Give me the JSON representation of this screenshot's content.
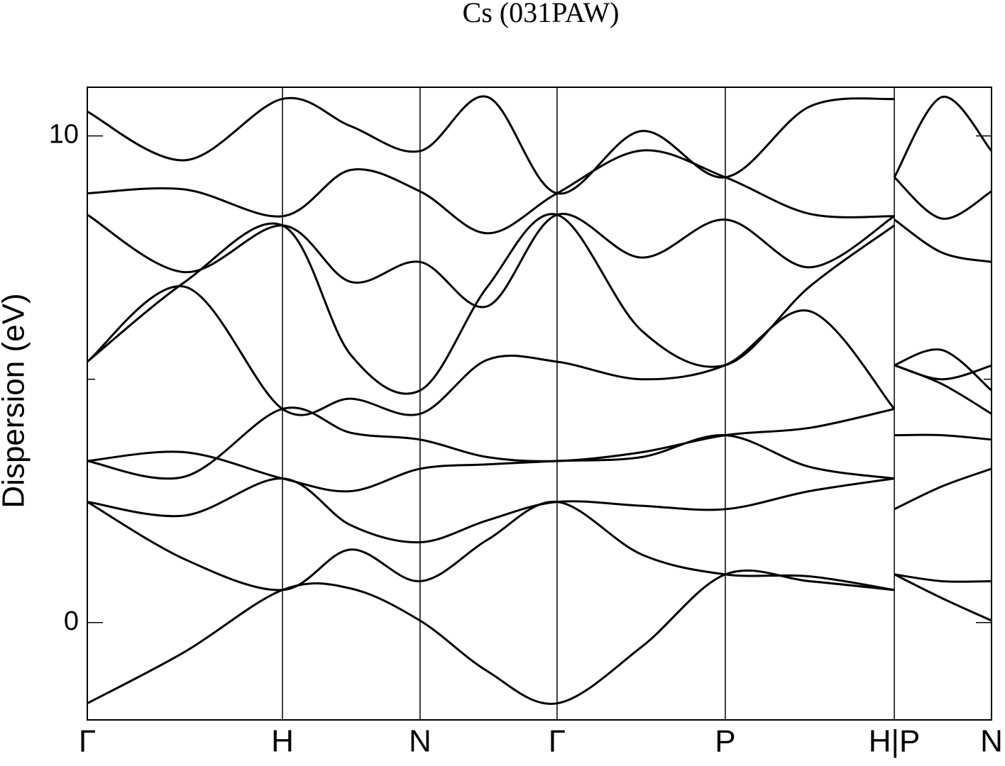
{
  "chart_data": {
    "type": "line",
    "title": "Cs (031PAW)",
    "y_label": "Dispersion (eV)",
    "color": "#000000",
    "xlim": [
      0,
      4.633
    ],
    "ylim": [
      -2,
      11
    ],
    "xticks": [
      {
        "value": 0,
        "label": "Γ"
      },
      {
        "value": 1,
        "label": "H"
      },
      {
        "value": 1.705,
        "label": "N"
      },
      {
        "value": 2.407,
        "label": "Γ"
      },
      {
        "value": 3.269,
        "label": "P"
      },
      {
        "value": 4.135,
        "label": "H|P"
      },
      {
        "value": 4.633,
        "label": "N"
      }
    ],
    "yticks": [
      0,
      10
    ],
    "minor_yticks": [
      5
    ],
    "x": [
      0,
      0.5,
      1,
      1.35,
      1.705,
      2.05,
      2.407,
      2.84,
      3.269,
      3.7,
      4.135,
      4.135,
      4.135,
      4.38,
      4.633
    ],
    "series": [
      {
        "values": [
          -1.66,
          -0.6,
          0.67,
          0.7,
          0.04,
          -1.0,
          -1.66,
          -0.5,
          0.99,
          0.85,
          0.67,
          null,
          0.99,
          0.5,
          0.04
        ]
      },
      {
        "values": [
          2.48,
          1.3,
          0.67,
          1.5,
          0.85,
          1.7,
          2.48,
          1.4,
          0.99,
          0.95,
          0.67,
          null,
          0.99,
          0.85,
          0.85
        ]
      },
      {
        "values": [
          2.48,
          2.2,
          2.96,
          2.0,
          1.65,
          2.1,
          2.48,
          2.4,
          2.33,
          2.7,
          2.96,
          null,
          2.33,
          2.8,
          3.16
        ]
      },
      {
        "values": [
          3.32,
          3.5,
          2.96,
          2.7,
          3.16,
          3.25,
          3.32,
          3.4,
          3.85,
          3.2,
          2.96,
          null,
          3.85,
          3.85,
          3.76
        ]
      },
      {
        "values": [
          3.32,
          3.0,
          4.39,
          3.9,
          3.76,
          3.4,
          3.32,
          3.5,
          3.85,
          4.0,
          4.39,
          null,
          5.29,
          4.9,
          4.29
        ]
      },
      {
        "values": [
          5.36,
          6.9,
          4.39,
          4.6,
          4.29,
          5.4,
          5.36,
          5.0,
          5.29,
          6.4,
          4.39,
          null,
          5.29,
          5.6,
          4.77
        ]
      },
      {
        "values": [
          5.36,
          7.0,
          8.16,
          5.5,
          4.77,
          6.9,
          8.38,
          6.0,
          5.29,
          6.9,
          8.16,
          null,
          5.29,
          5.0,
          5.28
        ]
      },
      {
        "values": [
          8.38,
          7.2,
          8.16,
          7.0,
          7.41,
          6.5,
          8.38,
          7.5,
          8.28,
          7.3,
          8.35,
          null,
          8.28,
          7.6,
          7.41
        ]
      },
      {
        "values": [
          8.82,
          8.9,
          8.35,
          9.3,
          8.86,
          8.0,
          8.82,
          9.7,
          9.15,
          8.4,
          8.35,
          null,
          9.15,
          8.3,
          8.86
        ]
      },
      {
        "values": [
          10.5,
          9.5,
          10.76,
          10.2,
          9.69,
          10.8,
          8.82,
          10.1,
          9.15,
          10.6,
          10.76,
          null,
          9.15,
          10.8,
          9.69
        ]
      }
    ]
  }
}
